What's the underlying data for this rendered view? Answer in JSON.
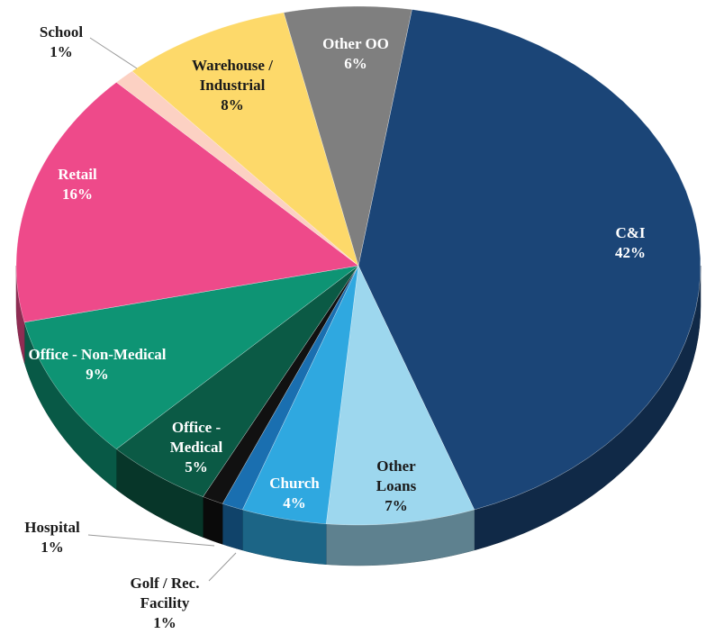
{
  "chart_data": {
    "type": "pie",
    "categories": [
      "C&I",
      "Other Loans",
      "Church",
      "Golf / Rec. Facility",
      "Hospital",
      "Office - Medical",
      "Office - Non-Medical",
      "Retail",
      "School",
      "Warehouse / Industrial",
      "Other OO"
    ],
    "values": [
      42,
      7,
      4,
      1,
      1,
      5,
      9,
      16,
      1,
      8,
      6
    ],
    "value_labels": [
      "42%",
      "7%",
      "4%",
      "1%",
      "1%",
      "5%",
      "9%",
      "16%",
      "1%",
      "8%",
      "6%"
    ],
    "colors": [
      "#1b4577",
      "#9dd7ee",
      "#2fa8e0",
      "#1a6fb0",
      "#111111",
      "#0b5a45",
      "#0e9474",
      "#ee4a8a",
      "#fcd1c3",
      "#fdd96a",
      "#7f7f7f"
    ]
  }
}
